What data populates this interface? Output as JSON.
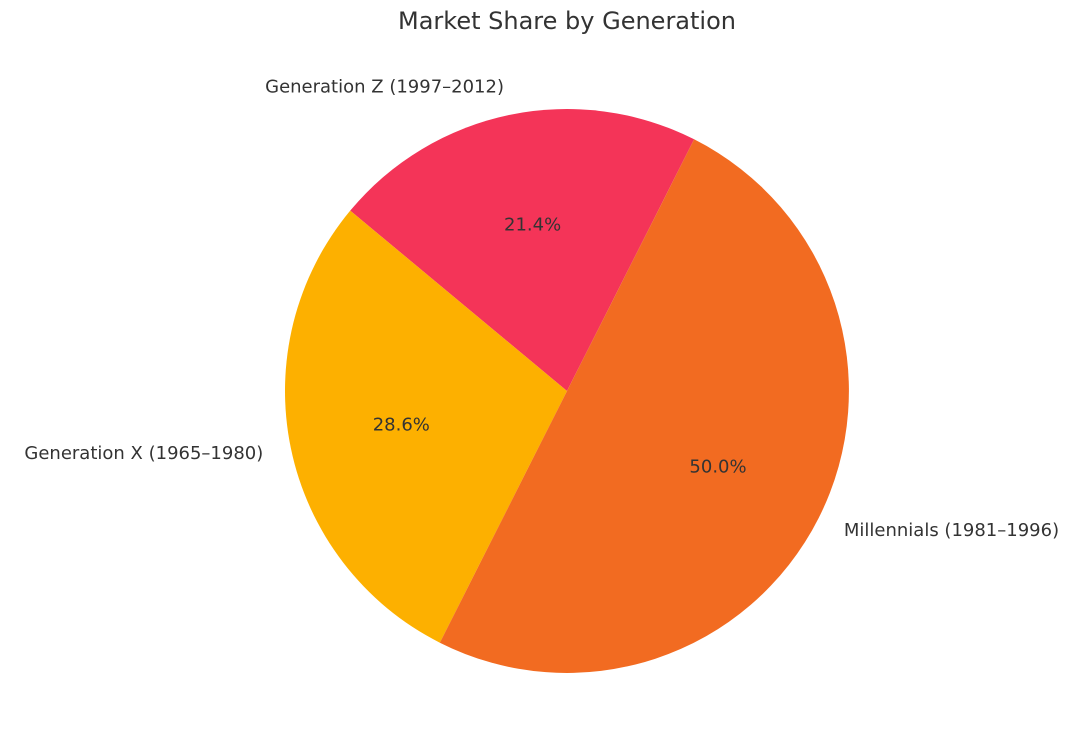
{
  "chart_data": {
    "type": "pie",
    "title": "Market Share by Generation",
    "categories": [
      "Generation Z (1997–2012)",
      "Generation X (1965–1980)",
      "Millennials (1981–1996)"
    ],
    "values": [
      21.4,
      28.6,
      50.0
    ],
    "value_labels": [
      "21.4%",
      "28.6%",
      "50.0%"
    ],
    "colors": [
      "#f43458",
      "#fdb000",
      "#f26b21"
    ]
  }
}
